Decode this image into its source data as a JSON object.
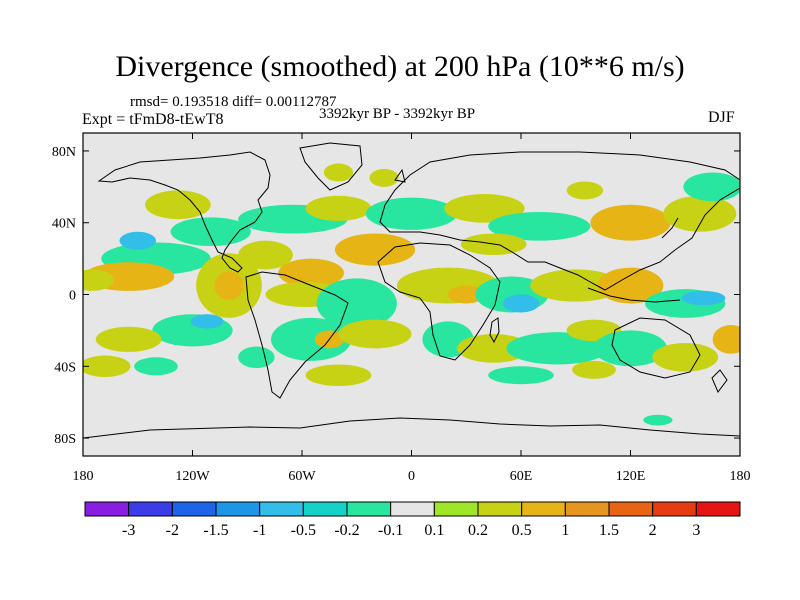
{
  "chart_data": {
    "type": "heatmap",
    "title": "Divergence (smoothed) at 200 hPa (10**6 m/s)",
    "stats_text": "rmsd= 0.193518 diff= 0.00112787",
    "experiment_text": "Expt = tFmD8-tEwT8",
    "period_text": "3392kyr BP - 3392kyr BP",
    "season_text": "DJF",
    "x_axis": {
      "range": [
        -180,
        180
      ],
      "ticks": [
        -180,
        -120,
        -60,
        0,
        60,
        120,
        180
      ],
      "tick_labels": [
        "180",
        "120W",
        "60W",
        "0",
        "60E",
        "120E",
        "180"
      ]
    },
    "y_axis": {
      "range": [
        -90,
        90
      ],
      "ticks": [
        80,
        40,
        0,
        -40,
        -80
      ],
      "tick_labels": [
        "80N",
        "40N",
        "0",
        "40S",
        "80S"
      ]
    },
    "colorbar": {
      "labels": [
        "-3",
        "-2",
        "-1.5",
        "-1",
        "-0.5",
        "-0.2",
        "-0.1",
        "0.1",
        "0.2",
        "0.5",
        "1",
        "1.5",
        "2",
        "3"
      ],
      "colors": [
        "#8a1ee0",
        "#3c3ce8",
        "#1e64e8",
        "#1e96e8",
        "#32bee8",
        "#14d2c8",
        "#28e6a0",
        "#e6e6e6",
        "#a0e628",
        "#c8d214",
        "#e6b414",
        "#e6961e",
        "#e66414",
        "#e63c14",
        "#e61414"
      ]
    },
    "features": [
      {
        "lon": -128,
        "lat": 50,
        "rx": 18,
        "ry": 8,
        "value": 0.3
      },
      {
        "lon": -140,
        "lat": 20,
        "rx": 30,
        "ry": 9,
        "value": -0.2
      },
      {
        "lon": -150,
        "lat": 30,
        "rx": 10,
        "ry": 5,
        "value": -1.0
      },
      {
        "lon": -155,
        "lat": 10,
        "rx": 25,
        "ry": 8,
        "value": 0.6
      },
      {
        "lon": -175,
        "lat": 8,
        "rx": 12,
        "ry": 6,
        "value": 0.3
      },
      {
        "lon": -110,
        "lat": 35,
        "rx": 22,
        "ry": 8,
        "value": -0.2
      },
      {
        "lon": -100,
        "lat": 5,
        "rx": 18,
        "ry": 18,
        "value": 0.3
      },
      {
        "lon": -100,
        "lat": 5,
        "rx": 8,
        "ry": 8,
        "value": 0.8
      },
      {
        "lon": -120,
        "lat": -20,
        "rx": 22,
        "ry": 9,
        "value": -0.2
      },
      {
        "lon": -112,
        "lat": -15,
        "rx": 9,
        "ry": 4,
        "value": -1.0
      },
      {
        "lon": -155,
        "lat": -25,
        "rx": 18,
        "ry": 7,
        "value": 0.3
      },
      {
        "lon": -168,
        "lat": -40,
        "rx": 14,
        "ry": 6,
        "value": 0.2
      },
      {
        "lon": -140,
        "lat": -40,
        "rx": 12,
        "ry": 5,
        "value": -0.2
      },
      {
        "lon": -85,
        "lat": -35,
        "rx": 10,
        "ry": 6,
        "value": -0.2
      },
      {
        "lon": -65,
        "lat": 42,
        "rx": 30,
        "ry": 8,
        "value": -0.2
      },
      {
        "lon": -40,
        "lat": 48,
        "rx": 18,
        "ry": 7,
        "value": 0.3
      },
      {
        "lon": -40,
        "lat": 68,
        "rx": 8,
        "ry": 5,
        "value": 0.2
      },
      {
        "lon": -80,
        "lat": 22,
        "rx": 15,
        "ry": 8,
        "value": 0.3
      },
      {
        "lon": -55,
        "lat": 12,
        "rx": 18,
        "ry": 8,
        "value": 0.5
      },
      {
        "lon": -58,
        "lat": 0,
        "rx": 22,
        "ry": 7,
        "value": 0.3
      },
      {
        "lon": -30,
        "lat": -5,
        "rx": 22,
        "ry": 14,
        "value": -0.2
      },
      {
        "lon": -55,
        "lat": -25,
        "rx": 22,
        "ry": 12,
        "value": -0.2
      },
      {
        "lon": -45,
        "lat": -25,
        "rx": 8,
        "ry": 5,
        "value": 0.5
      },
      {
        "lon": -20,
        "lat": -22,
        "rx": 20,
        "ry": 8,
        "value": 0.3
      },
      {
        "lon": -40,
        "lat": -45,
        "rx": 18,
        "ry": 6,
        "value": 0.2
      },
      {
        "lon": -20,
        "lat": 25,
        "rx": 22,
        "ry": 9,
        "value": 0.5
      },
      {
        "lon": 0,
        "lat": 45,
        "rx": 25,
        "ry": 9,
        "value": -0.2
      },
      {
        "lon": 40,
        "lat": 48,
        "rx": 22,
        "ry": 8,
        "value": 0.3
      },
      {
        "lon": 70,
        "lat": 38,
        "rx": 28,
        "ry": 8,
        "value": -0.2
      },
      {
        "lon": 45,
        "lat": 28,
        "rx": 18,
        "ry": 6,
        "value": 0.3
      },
      {
        "lon": 120,
        "lat": 40,
        "rx": 22,
        "ry": 10,
        "value": 0.5
      },
      {
        "lon": 158,
        "lat": 45,
        "rx": 20,
        "ry": 10,
        "value": 0.3
      },
      {
        "lon": 165,
        "lat": 60,
        "rx": 16,
        "ry": 8,
        "value": -0.2
      },
      {
        "lon": 95,
        "lat": 58,
        "rx": 10,
        "ry": 5,
        "value": 0.2
      },
      {
        "lon": -15,
        "lat": 65,
        "rx": 8,
        "ry": 5,
        "value": 0.2
      },
      {
        "lon": 20,
        "lat": 5,
        "rx": 28,
        "ry": 10,
        "value": 0.3
      },
      {
        "lon": 30,
        "lat": 0,
        "rx": 10,
        "ry": 5,
        "value": 0.7
      },
      {
        "lon": 55,
        "lat": 0,
        "rx": 20,
        "ry": 10,
        "value": -0.2
      },
      {
        "lon": 60,
        "lat": -5,
        "rx": 10,
        "ry": 5,
        "value": -1.0
      },
      {
        "lon": 90,
        "lat": 5,
        "rx": 25,
        "ry": 9,
        "value": 0.3
      },
      {
        "lon": 120,
        "lat": 5,
        "rx": 18,
        "ry": 10,
        "value": 0.6
      },
      {
        "lon": 150,
        "lat": -5,
        "rx": 22,
        "ry": 8,
        "value": -0.2
      },
      {
        "lon": 160,
        "lat": -2,
        "rx": 12,
        "ry": 4,
        "value": -1.0
      },
      {
        "lon": 20,
        "lat": -25,
        "rx": 14,
        "ry": 10,
        "value": -0.2
      },
      {
        "lon": 45,
        "lat": -30,
        "rx": 20,
        "ry": 8,
        "value": 0.3
      },
      {
        "lon": 80,
        "lat": -30,
        "rx": 28,
        "ry": 9,
        "value": -0.2
      },
      {
        "lon": 100,
        "lat": -20,
        "rx": 15,
        "ry": 6,
        "value": 0.3
      },
      {
        "lon": 120,
        "lat": -30,
        "rx": 20,
        "ry": 10,
        "value": -0.2
      },
      {
        "lon": 150,
        "lat": -35,
        "rx": 18,
        "ry": 8,
        "value": 0.3
      },
      {
        "lon": 175,
        "lat": -25,
        "rx": 10,
        "ry": 8,
        "value": 0.5
      },
      {
        "lon": 60,
        "lat": -45,
        "rx": 18,
        "ry": 5,
        "value": -0.2
      },
      {
        "lon": 100,
        "lat": -42,
        "rx": 12,
        "ry": 5,
        "value": 0.2
      },
      {
        "lon": 135,
        "lat": -70,
        "rx": 8,
        "ry": 3,
        "value": -0.2
      }
    ]
  }
}
